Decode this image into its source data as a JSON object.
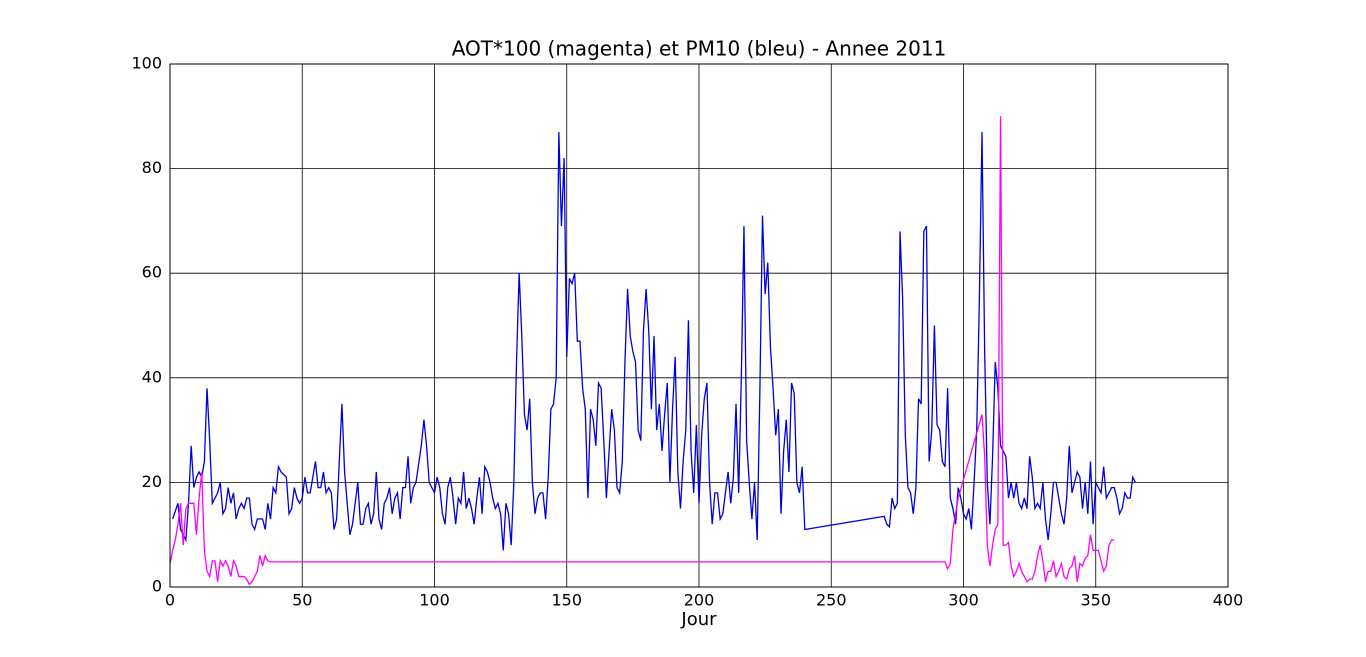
{
  "chart_data": {
    "type": "line",
    "title": "AOT*100 (magenta) et PM10 (bleu) - Annee 2011",
    "xlabel": "Jour",
    "xlim": [
      0,
      400
    ],
    "xticks": [
      0,
      50,
      100,
      150,
      200,
      250,
      300,
      350,
      400
    ],
    "ylim": [
      0,
      100
    ],
    "yticks": [
      0,
      20,
      40,
      60,
      80,
      100
    ],
    "grid": true,
    "series": [
      {
        "color": "#0000dd",
        "x": [
          1,
          3,
          4,
          6,
          7,
          8,
          9,
          10,
          11,
          12,
          13,
          14,
          15,
          16,
          18,
          19,
          20,
          21,
          22,
          23,
          24,
          25,
          26,
          27,
          28,
          29,
          30,
          31,
          32,
          33,
          35,
          36,
          37,
          38,
          39,
          40,
          41,
          42,
          44,
          45,
          46,
          47,
          48,
          49,
          50,
          51,
          52,
          53,
          55,
          56,
          57,
          58,
          59,
          60,
          61,
          62,
          63,
          65,
          66,
          67,
          68,
          69,
          70,
          71,
          72,
          73,
          74,
          75,
          76,
          77,
          78,
          79,
          80,
          81,
          82,
          83,
          84,
          85,
          86,
          87,
          88,
          89,
          90,
          91,
          92,
          93,
          95,
          96,
          97,
          98,
          99,
          100,
          101,
          102,
          103,
          104,
          105,
          106,
          107,
          108,
          109,
          110,
          111,
          112,
          113,
          114,
          115,
          116,
          117,
          118,
          119,
          120,
          121,
          122,
          123,
          124,
          125,
          126,
          127,
          128,
          129,
          130,
          131,
          132,
          133,
          134,
          135,
          136,
          137,
          138,
          139,
          140,
          141,
          142,
          143,
          144,
          145,
          146,
          147,
          148,
          149,
          150,
          151,
          152,
          153,
          154,
          155,
          156,
          157,
          158,
          159,
          160,
          161,
          162,
          163,
          164,
          165,
          166,
          167,
          168,
          169,
          170,
          171,
          172,
          173,
          174,
          175,
          176,
          177,
          178,
          179,
          180,
          181,
          182,
          183,
          184,
          185,
          186,
          187,
          188,
          189,
          190,
          191,
          192,
          193,
          194,
          195,
          196,
          197,
          198,
          199,
          200,
          201,
          202,
          203,
          204,
          205,
          206,
          207,
          208,
          209,
          210,
          211,
          212,
          213,
          214,
          215,
          216,
          217,
          218,
          219,
          220,
          221,
          222,
          223,
          224,
          225,
          226,
          227,
          228,
          229,
          230,
          231,
          232,
          233,
          234,
          235,
          236,
          237,
          238,
          239,
          240,
          270,
          271,
          272,
          273,
          274,
          275,
          276,
          277,
          278,
          279,
          280,
          281,
          282,
          283,
          284,
          285,
          286,
          287,
          288,
          289,
          290,
          291,
          292,
          293,
          294,
          295,
          296,
          297,
          298,
          299,
          300,
          301,
          302,
          303,
          304,
          305,
          306,
          307,
          308,
          309,
          310,
          311,
          312,
          313,
          314,
          315,
          316,
          317,
          318,
          319,
          320,
          321,
          322,
          323,
          324,
          325,
          326,
          327,
          328,
          329,
          330,
          331,
          332,
          333,
          334,
          335,
          336,
          337,
          338,
          339,
          340,
          341,
          342,
          343,
          344,
          345,
          346,
          347,
          348,
          349,
          350,
          351,
          352,
          353,
          354,
          355,
          356,
          357,
          358,
          359,
          360,
          361,
          362,
          363,
          364,
          365
        ],
        "values": [
          13,
          16,
          11,
          9,
          16,
          27,
          19,
          21,
          22,
          21,
          24,
          38,
          28,
          16,
          18,
          20,
          14,
          15,
          19,
          16,
          18,
          13,
          15,
          16,
          15,
          17,
          17,
          12,
          11,
          13,
          13,
          11,
          16,
          13,
          19,
          18,
          23,
          22,
          21,
          14,
          15,
          19,
          17,
          16,
          17,
          21,
          18,
          18,
          24,
          19,
          19,
          22,
          18,
          19,
          18,
          11,
          13,
          35,
          22,
          16,
          10,
          12,
          16,
          20,
          12,
          12,
          15,
          16,
          12,
          14,
          22,
          13,
          11,
          16,
          17,
          19,
          14,
          17,
          18,
          13,
          19,
          19,
          25,
          16,
          19,
          20,
          27,
          32,
          27,
          20,
          19,
          18,
          21,
          19,
          14,
          12,
          19,
          21,
          17,
          12,
          17,
          16,
          22,
          15,
          17,
          15,
          12,
          17,
          21,
          14,
          23,
          22,
          20,
          17,
          15,
          16,
          14,
          7,
          16,
          14,
          8,
          20,
          43,
          60,
          48,
          33,
          30,
          36,
          20,
          14,
          17,
          18,
          18,
          13,
          21,
          34,
          35,
          40,
          87,
          69,
          82,
          44,
          59,
          58,
          60,
          47,
          47,
          38,
          34,
          17,
          34,
          32,
          27,
          39,
          38,
          28,
          17,
          26,
          34,
          30,
          19,
          18,
          24,
          43,
          57,
          48,
          45,
          43,
          30,
          28,
          49,
          57,
          49,
          34,
          48,
          30,
          35,
          26,
          33,
          39,
          20,
          34,
          44,
          22,
          15,
          24,
          30,
          51,
          26,
          18,
          31,
          16,
          29,
          36,
          39,
          20,
          12,
          18,
          18,
          13,
          14,
          18,
          22,
          16,
          21,
          35,
          18,
          40,
          69,
          28,
          20,
          13,
          20,
          9,
          37,
          71,
          56,
          62,
          46,
          38,
          29,
          34,
          14,
          26,
          32,
          22,
          39,
          37,
          20,
          18,
          23,
          11,
          13.5,
          12,
          11.5,
          17,
          15,
          16,
          68,
          55,
          29,
          19,
          18,
          14,
          19,
          36,
          35,
          68,
          69,
          24,
          30,
          50,
          31,
          30,
          24,
          23,
          38,
          17,
          15,
          12,
          19,
          17,
          14,
          13,
          15,
          11,
          20,
          30,
          55,
          87,
          45,
          20,
          12,
          25,
          43,
          38,
          27,
          26,
          25,
          17,
          20,
          17,
          20,
          16,
          15,
          17,
          15,
          25,
          21,
          15,
          16,
          15,
          20,
          13,
          9,
          14,
          20,
          20,
          17,
          14,
          12,
          17,
          27,
          18,
          20,
          22,
          21,
          15,
          20,
          14,
          24,
          12,
          20,
          19,
          18,
          23,
          17,
          18,
          19,
          19,
          17,
          14,
          15,
          18,
          17,
          17,
          21,
          20
        ]
      },
      {
        "color": "#ff00ff",
        "x": [
          0,
          1,
          2,
          3,
          4,
          5,
          6,
          7,
          8,
          9,
          10,
          11,
          12,
          13,
          14,
          15,
          16,
          17,
          18,
          19,
          20,
          21,
          22,
          23,
          24,
          25,
          26,
          27,
          28,
          29,
          30,
          31,
          32,
          33,
          34,
          35,
          36,
          37,
          38,
          42,
          293,
          294,
          295,
          296,
          297,
          298,
          307,
          308,
          309,
          310,
          311,
          312,
          313,
          314,
          315,
          316,
          317,
          318,
          319,
          320,
          321,
          322,
          323,
          324,
          325,
          326,
          327,
          328,
          329,
          330,
          331,
          332,
          333,
          334,
          335,
          336,
          337,
          338,
          339,
          340,
          341,
          342,
          343,
          344,
          345,
          346,
          347,
          348,
          349,
          350,
          351,
          352,
          353,
          354,
          355,
          356,
          357
        ],
        "values": [
          4.5,
          7,
          9,
          12,
          16,
          8,
          15,
          16,
          16,
          16,
          10,
          17,
          22,
          7,
          3,
          2,
          5,
          5,
          1,
          5,
          4,
          5,
          4,
          2,
          5,
          4,
          2,
          2,
          2,
          1.5,
          0.5,
          1,
          2,
          3,
          6,
          4,
          6,
          5,
          4.8,
          4.8,
          4.8,
          3.5,
          4.5,
          11,
          14,
          17,
          33,
          25,
          8,
          4,
          8,
          11,
          12,
          90,
          8,
          8,
          8.5,
          4,
          2,
          3,
          4.5,
          3,
          2,
          1,
          1.5,
          1.5,
          3,
          6,
          8,
          5,
          1,
          3,
          3,
          5,
          2,
          3,
          4.5,
          2,
          1.5,
          3.5,
          4,
          6,
          1,
          4.5,
          4,
          5.5,
          6,
          10,
          7,
          7,
          7,
          5,
          3,
          4,
          8,
          9,
          9
        ]
      }
    ]
  }
}
